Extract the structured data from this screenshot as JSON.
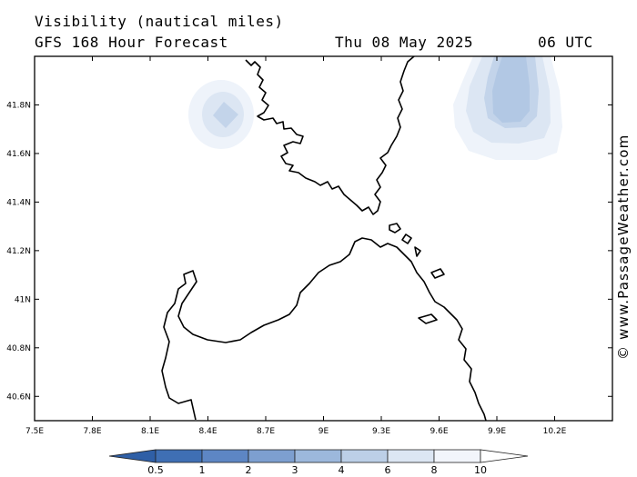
{
  "header": {
    "title": "Visibility (nautical miles)",
    "subtitle": "GFS 168 Hour Forecast",
    "valid_date": "Thu 08 May 2025",
    "valid_time": "06 UTC"
  },
  "map": {
    "lon_ticks": [
      "7.5E",
      "7.8E",
      "8.1E",
      "8.4E",
      "8.7E",
      "9E",
      "9.3E",
      "9.6E",
      "9.9E",
      "10.2E"
    ],
    "lat_ticks": [
      "41.8N",
      "41.6N",
      "41.4N",
      "41.2N",
      "41N",
      "40.8N",
      "40.6N"
    ],
    "lon_range": [
      7.5,
      10.5
    ],
    "lat_range": [
      40.5,
      42.0
    ],
    "regions": [
      "Corsica",
      "Sardinia"
    ]
  },
  "legend": {
    "values": [
      "0.5",
      "1",
      "2",
      "3",
      "4",
      "6",
      "8",
      "10"
    ],
    "colors": [
      "#3f6fb4",
      "#5d86c4",
      "#7d9fd0",
      "#9cb8dc",
      "#bccfe7",
      "#dce6f3",
      "#f2f5fb"
    ]
  },
  "credit": "© www.PassageWeather.com"
}
